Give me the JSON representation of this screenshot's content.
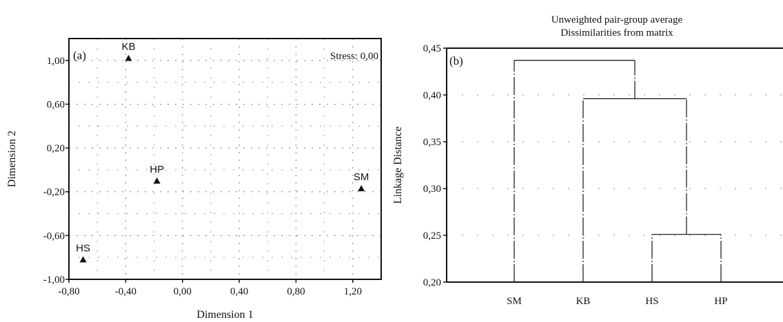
{
  "chart_data": [
    {
      "type": "scatter",
      "panel_label": "(a)",
      "annotation": "Stress: 0,00",
      "xlabel": "Dimension 1",
      "ylabel": "Dimension 2",
      "xlim": [
        -0.8,
        1.4
      ],
      "ylim": [
        -1.0,
        1.2
      ],
      "x_ticks": [
        {
          "value": -0.8,
          "label": "-0,80"
        },
        {
          "value": -0.4,
          "label": "-0,40"
        },
        {
          "value": 0.0,
          "label": "0,00"
        },
        {
          "value": 0.4,
          "label": "0,40"
        },
        {
          "value": 0.8,
          "label": "0,80"
        },
        {
          "value": 1.2,
          "label": "1,20"
        }
      ],
      "y_ticks": [
        {
          "value": -1.0,
          "label": "-1,00"
        },
        {
          "value": -0.6,
          "label": "-0,60"
        },
        {
          "value": -0.2,
          "label": "-0,20"
        },
        {
          "value": 0.2,
          "label": "0,20"
        },
        {
          "value": 0.6,
          "label": "0,60"
        },
        {
          "value": 1.0,
          "label": "1,00"
        }
      ],
      "grid": true,
      "points": [
        {
          "label": "KB",
          "x": -0.38,
          "y": 1.02
        },
        {
          "label": "HP",
          "x": -0.18,
          "y": -0.1
        },
        {
          "label": "SM",
          "x": 1.26,
          "y": -0.17
        },
        {
          "label": "HS",
          "x": -0.7,
          "y": -0.82
        }
      ]
    },
    {
      "type": "dendrogram",
      "panel_label": "(b)",
      "title": "Unweighted pair-group average",
      "subtitle": "Dissimilarities from matrix",
      "ylabel": "Linkage Distance",
      "ylim": [
        0.2,
        0.45
      ],
      "y_ticks": [
        {
          "value": 0.2,
          "label": "0,20"
        },
        {
          "value": 0.25,
          "label": "0,25"
        },
        {
          "value": 0.3,
          "label": "0,30"
        },
        {
          "value": 0.35,
          "label": "0,35"
        },
        {
          "value": 0.4,
          "label": "0,40"
        },
        {
          "value": 0.45,
          "label": "0,45"
        }
      ],
      "leaves": [
        "SM",
        "KB",
        "HS",
        "HP"
      ],
      "merges": [
        {
          "left": "HS",
          "right": "HP",
          "height": 0.251
        },
        {
          "left": "KB",
          "right": "HS+HP",
          "height": 0.396
        },
        {
          "left": "SM",
          "right": "KB+HS+HP",
          "height": 0.437
        }
      ]
    }
  ]
}
